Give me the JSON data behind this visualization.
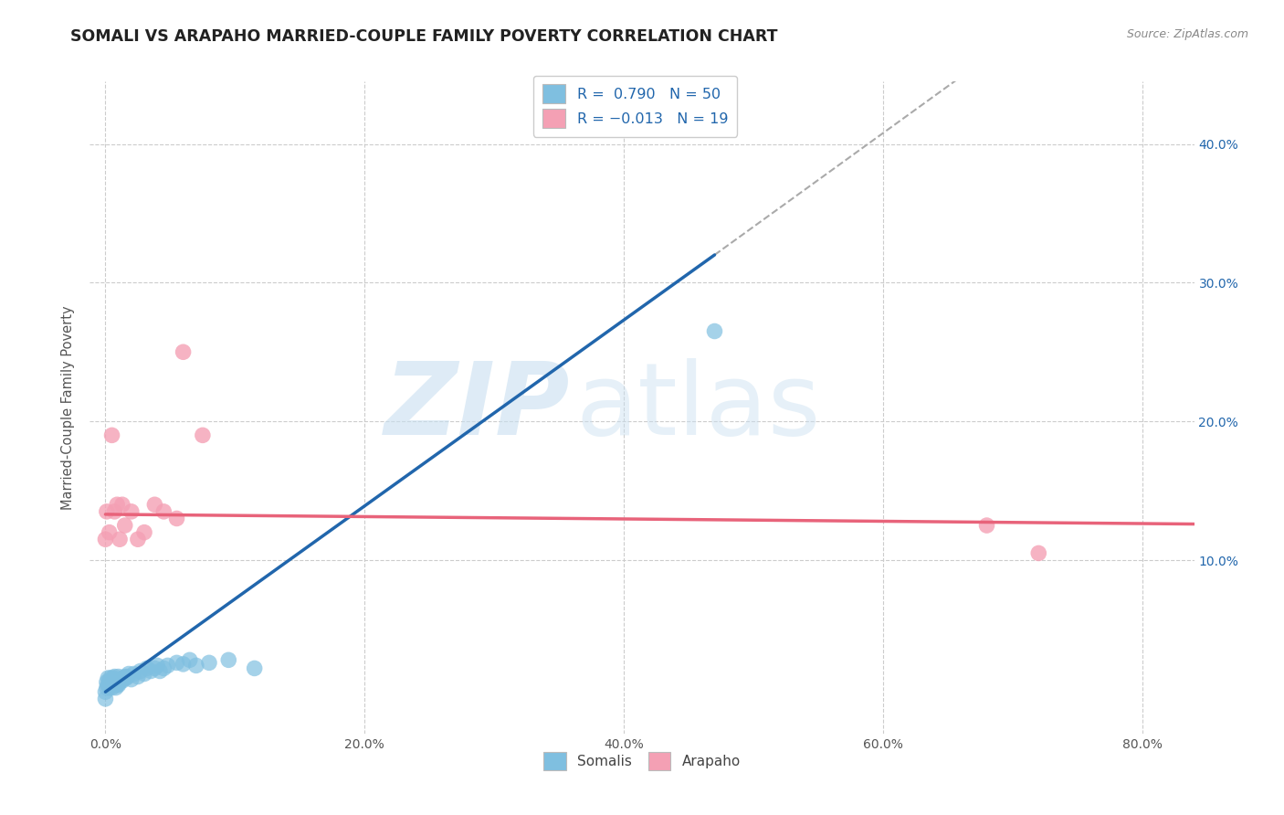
{
  "title": "SOMALI VS ARAPAHO MARRIED-COUPLE FAMILY POVERTY CORRELATION CHART",
  "source": "Source: ZipAtlas.com",
  "ylabel": "Married-Couple Family Poverty",
  "x_tick_labels": [
    "0.0%",
    "20.0%",
    "40.0%",
    "60.0%",
    "80.0%"
  ],
  "x_tick_values": [
    0.0,
    0.2,
    0.4,
    0.6,
    0.8
  ],
  "y_tick_labels": [
    "10.0%",
    "20.0%",
    "30.0%",
    "40.0%"
  ],
  "y_tick_values": [
    0.1,
    0.2,
    0.3,
    0.4
  ],
  "xlim": [
    -0.012,
    0.84
  ],
  "ylim": [
    -0.025,
    0.445
  ],
  "somali_R": 0.79,
  "somali_N": 50,
  "arapaho_R": -0.013,
  "arapaho_N": 19,
  "somali_color": "#7fbfe0",
  "somali_line_color": "#2166ac",
  "arapaho_color": "#f4a0b4",
  "arapaho_line_color": "#e8637a",
  "watermark_zip": "ZIP",
  "watermark_atlas": "atlas",
  "background_color": "#ffffff",
  "grid_color": "#cccccc",
  "legend_labels": [
    "Somalis",
    "Arapaho"
  ],
  "somali_x": [
    0.0,
    0.0,
    0.001,
    0.001,
    0.002,
    0.002,
    0.003,
    0.003,
    0.004,
    0.004,
    0.005,
    0.005,
    0.006,
    0.006,
    0.007,
    0.007,
    0.008,
    0.008,
    0.009,
    0.009,
    0.01,
    0.01,
    0.011,
    0.012,
    0.013,
    0.014,
    0.015,
    0.016,
    0.017,
    0.018,
    0.02,
    0.022,
    0.025,
    0.027,
    0.03,
    0.032,
    0.035,
    0.038,
    0.04,
    0.042,
    0.045,
    0.048,
    0.055,
    0.06,
    0.065,
    0.07,
    0.08,
    0.095,
    0.115,
    0.47
  ],
  "somali_y": [
    0.0,
    0.005,
    0.008,
    0.012,
    0.01,
    0.015,
    0.008,
    0.013,
    0.01,
    0.015,
    0.008,
    0.013,
    0.01,
    0.015,
    0.01,
    0.016,
    0.008,
    0.012,
    0.01,
    0.014,
    0.01,
    0.016,
    0.012,
    0.014,
    0.013,
    0.015,
    0.016,
    0.015,
    0.016,
    0.018,
    0.014,
    0.018,
    0.016,
    0.02,
    0.018,
    0.022,
    0.02,
    0.022,
    0.024,
    0.02,
    0.022,
    0.024,
    0.026,
    0.025,
    0.028,
    0.024,
    0.026,
    0.028,
    0.022,
    0.265
  ],
  "arapaho_x": [
    0.0,
    0.001,
    0.003,
    0.005,
    0.007,
    0.009,
    0.011,
    0.013,
    0.015,
    0.02,
    0.025,
    0.03,
    0.038,
    0.045,
    0.055,
    0.06,
    0.075,
    0.68,
    0.72
  ],
  "arapaho_y": [
    0.115,
    0.135,
    0.12,
    0.19,
    0.135,
    0.14,
    0.115,
    0.14,
    0.125,
    0.135,
    0.115,
    0.12,
    0.14,
    0.135,
    0.13,
    0.25,
    0.19,
    0.125,
    0.105
  ],
  "somali_line_x": [
    0.0,
    0.47
  ],
  "somali_line_y": [
    0.005,
    0.32
  ],
  "arapaho_line_x": [
    0.0,
    0.84
  ],
  "arapaho_line_y": [
    0.133,
    0.126
  ],
  "dashed_line_x": [
    0.47,
    0.84
  ],
  "dashed_line_y": [
    0.32,
    0.57
  ]
}
